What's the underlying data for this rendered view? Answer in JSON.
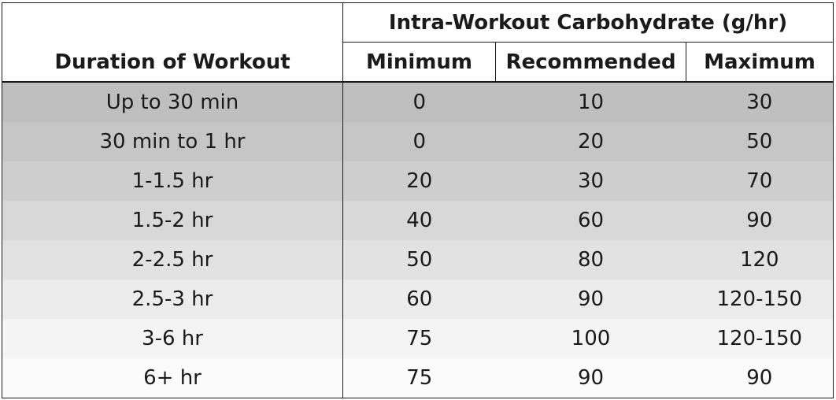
{
  "table": {
    "group_header": "Intra-Workout Carbohydrate (g/hr)",
    "duration_header": "Duration of Workout",
    "columns": [
      "Minimum",
      "Recommended",
      "Maximum"
    ],
    "rows": [
      {
        "duration": "Up to 30 min",
        "min": "0",
        "rec": "10",
        "max": "30",
        "shade": "#bfbfbf"
      },
      {
        "duration": "30 min to 1 hr",
        "min": "0",
        "rec": "20",
        "max": "50",
        "shade": "#c6c6c6"
      },
      {
        "duration": "1-1.5 hr",
        "min": "20",
        "rec": "30",
        "max": "70",
        "shade": "#cecece"
      },
      {
        "duration": "1.5-2 hr",
        "min": "40",
        "rec": "60",
        "max": "90",
        "shade": "#d8d8d8"
      },
      {
        "duration": "2-2.5 hr",
        "min": "50",
        "rec": "80",
        "max": "120",
        "shade": "#e2e2e2"
      },
      {
        "duration": "2.5-3 hr",
        "min": "60",
        "rec": "90",
        "max": "120-150",
        "shade": "#ececec"
      },
      {
        "duration": "3-6 hr",
        "min": "75",
        "rec": "100",
        "max": "120-150",
        "shade": "#f4f4f4"
      },
      {
        "duration": "6+ hr",
        "min": "75",
        "rec": "90",
        "max": "90",
        "shade": "#fbfbfb"
      }
    ]
  }
}
